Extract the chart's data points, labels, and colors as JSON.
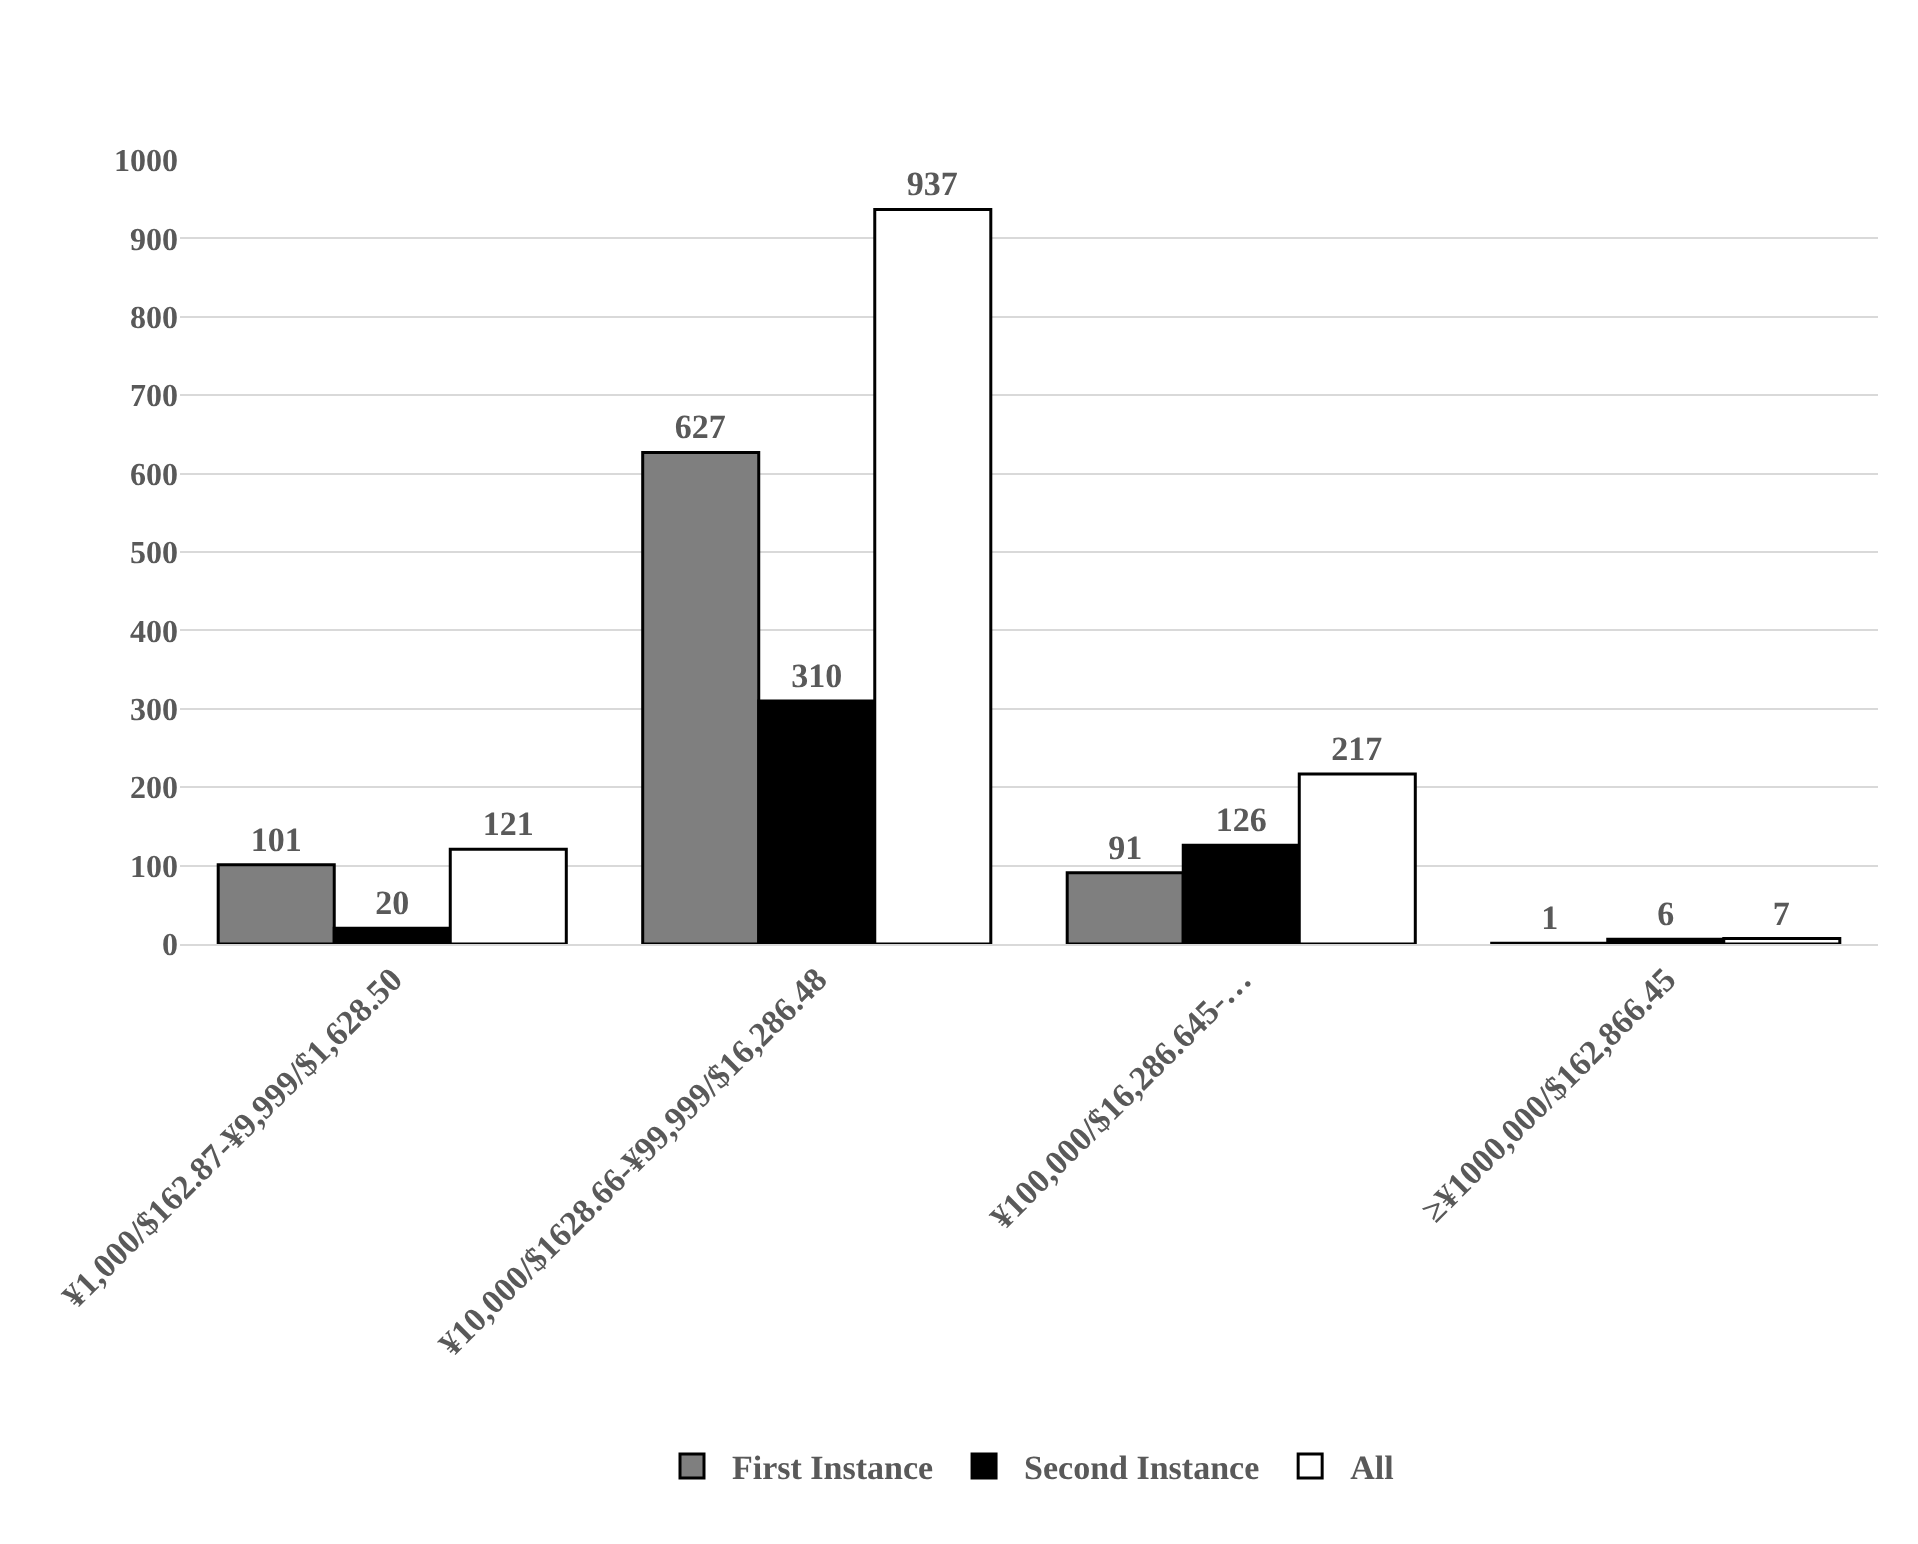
{
  "chart_data": {
    "type": "bar",
    "categories": [
      "¥1,000/$162.87-¥9,999/$1,628.50",
      "¥10,000/$1628.66-¥99,999/$16,286.48",
      "¥100,000/$16,286.645-…",
      "≥¥1000,000/$162,866.45"
    ],
    "series": [
      {
        "name": "First Instance",
        "color": "#7f7f7f",
        "values": [
          101,
          627,
          91,
          1
        ]
      },
      {
        "name": "Second Instance",
        "color": "#000000",
        "values": [
          20,
          310,
          126,
          6
        ]
      },
      {
        "name": "All",
        "color": "#ffffff",
        "values": [
          121,
          937,
          217,
          7
        ]
      }
    ],
    "ylim": [
      0,
      1000
    ],
    "yticks": [
      0,
      100,
      200,
      300,
      400,
      500,
      600,
      700,
      800,
      900,
      1000
    ],
    "grid": "y",
    "legend": "bottom",
    "data_labels": true
  }
}
